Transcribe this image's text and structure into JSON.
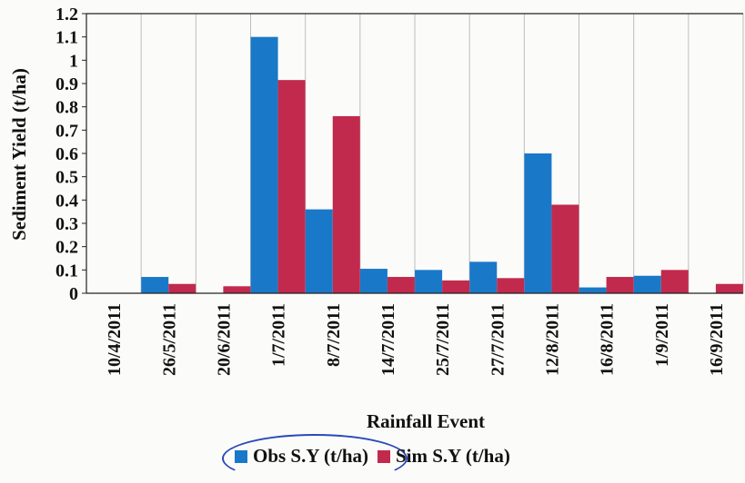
{
  "chart_data": {
    "type": "bar",
    "categories": [
      "10/4/2011",
      "26/5/2011",
      "20/6/2011",
      "1/7/2011",
      "8/7/2011",
      "14/7/2011",
      "25/7/2011",
      "27/7/2011",
      "12/8/2011",
      "16/8/2011",
      "1/9/2011",
      "16/9/2011"
    ],
    "series": [
      {
        "name": "Obs S.Y (t/ha)",
        "color": "#1a78c8",
        "values": [
          0,
          0.07,
          0,
          1.1,
          0.36,
          0.105,
          0.1,
          0.135,
          0.6,
          0.025,
          0.075,
          0
        ]
      },
      {
        "name": "Sim S.Y (t/ha)",
        "color": "#c12a4c",
        "values": [
          0,
          0.04,
          0.03,
          0.915,
          0.76,
          0.07,
          0.055,
          0.065,
          0.38,
          0.07,
          0.1,
          0.04
        ]
      }
    ],
    "xlabel": "Rainfall Event",
    "ylabel": "Sediment Yield (t/ha)",
    "ylim": [
      0,
      1.2
    ],
    "yticks": [
      "0",
      "0.1",
      "0.2",
      "0.3",
      "0.4",
      "0.5",
      "0.6",
      "0.7",
      "0.8",
      "0.9",
      "1",
      "1.1",
      "1.2"
    ],
    "grid": "vertical",
    "legend_position": "bottom"
  }
}
